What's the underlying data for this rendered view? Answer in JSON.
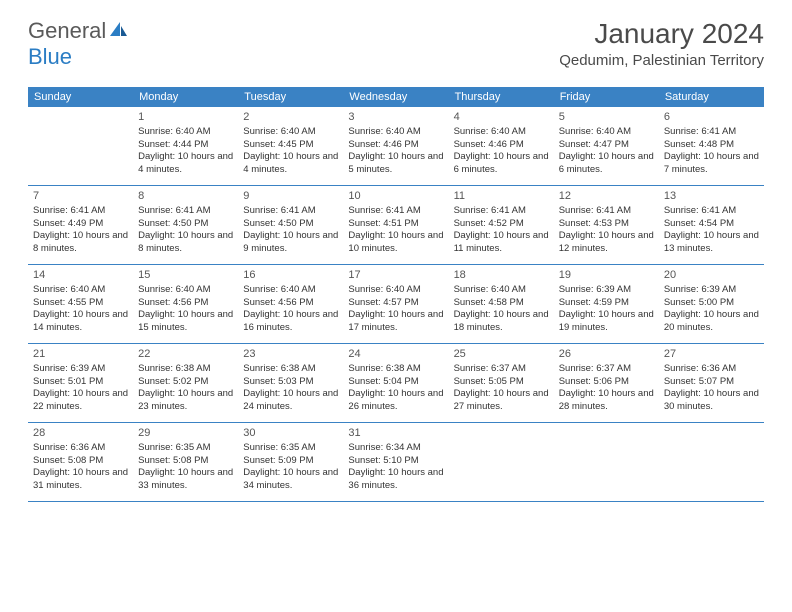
{
  "brand": {
    "part1": "General",
    "part2": "Blue"
  },
  "title": "January 2024",
  "location": "Qedumim, Palestinian Territory",
  "colors": {
    "header_bg": "#3a82c4",
    "header_text": "#ffffff",
    "row_divider": "#3a82c4",
    "body_text": "#333333",
    "title_text": "#4a4a4a",
    "brand_gray": "#5a5a5a",
    "brand_blue": "#2b7dc4",
    "background": "#ffffff"
  },
  "dayNames": [
    "Sunday",
    "Monday",
    "Tuesday",
    "Wednesday",
    "Thursday",
    "Friday",
    "Saturday"
  ],
  "weeks": [
    [
      null,
      {
        "n": "1",
        "sunrise": "6:40 AM",
        "sunset": "4:44 PM",
        "daylight": "10 hours and 4 minutes."
      },
      {
        "n": "2",
        "sunrise": "6:40 AM",
        "sunset": "4:45 PM",
        "daylight": "10 hours and 4 minutes."
      },
      {
        "n": "3",
        "sunrise": "6:40 AM",
        "sunset": "4:46 PM",
        "daylight": "10 hours and 5 minutes."
      },
      {
        "n": "4",
        "sunrise": "6:40 AM",
        "sunset": "4:46 PM",
        "daylight": "10 hours and 6 minutes."
      },
      {
        "n": "5",
        "sunrise": "6:40 AM",
        "sunset": "4:47 PM",
        "daylight": "10 hours and 6 minutes."
      },
      {
        "n": "6",
        "sunrise": "6:41 AM",
        "sunset": "4:48 PM",
        "daylight": "10 hours and 7 minutes."
      }
    ],
    [
      {
        "n": "7",
        "sunrise": "6:41 AM",
        "sunset": "4:49 PM",
        "daylight": "10 hours and 8 minutes."
      },
      {
        "n": "8",
        "sunrise": "6:41 AM",
        "sunset": "4:50 PM",
        "daylight": "10 hours and 8 minutes."
      },
      {
        "n": "9",
        "sunrise": "6:41 AM",
        "sunset": "4:50 PM",
        "daylight": "10 hours and 9 minutes."
      },
      {
        "n": "10",
        "sunrise": "6:41 AM",
        "sunset": "4:51 PM",
        "daylight": "10 hours and 10 minutes."
      },
      {
        "n": "11",
        "sunrise": "6:41 AM",
        "sunset": "4:52 PM",
        "daylight": "10 hours and 11 minutes."
      },
      {
        "n": "12",
        "sunrise": "6:41 AM",
        "sunset": "4:53 PM",
        "daylight": "10 hours and 12 minutes."
      },
      {
        "n": "13",
        "sunrise": "6:41 AM",
        "sunset": "4:54 PM",
        "daylight": "10 hours and 13 minutes."
      }
    ],
    [
      {
        "n": "14",
        "sunrise": "6:40 AM",
        "sunset": "4:55 PM",
        "daylight": "10 hours and 14 minutes."
      },
      {
        "n": "15",
        "sunrise": "6:40 AM",
        "sunset": "4:56 PM",
        "daylight": "10 hours and 15 minutes."
      },
      {
        "n": "16",
        "sunrise": "6:40 AM",
        "sunset": "4:56 PM",
        "daylight": "10 hours and 16 minutes."
      },
      {
        "n": "17",
        "sunrise": "6:40 AM",
        "sunset": "4:57 PM",
        "daylight": "10 hours and 17 minutes."
      },
      {
        "n": "18",
        "sunrise": "6:40 AM",
        "sunset": "4:58 PM",
        "daylight": "10 hours and 18 minutes."
      },
      {
        "n": "19",
        "sunrise": "6:39 AM",
        "sunset": "4:59 PM",
        "daylight": "10 hours and 19 minutes."
      },
      {
        "n": "20",
        "sunrise": "6:39 AM",
        "sunset": "5:00 PM",
        "daylight": "10 hours and 20 minutes."
      }
    ],
    [
      {
        "n": "21",
        "sunrise": "6:39 AM",
        "sunset": "5:01 PM",
        "daylight": "10 hours and 22 minutes."
      },
      {
        "n": "22",
        "sunrise": "6:38 AM",
        "sunset": "5:02 PM",
        "daylight": "10 hours and 23 minutes."
      },
      {
        "n": "23",
        "sunrise": "6:38 AM",
        "sunset": "5:03 PM",
        "daylight": "10 hours and 24 minutes."
      },
      {
        "n": "24",
        "sunrise": "6:38 AM",
        "sunset": "5:04 PM",
        "daylight": "10 hours and 26 minutes."
      },
      {
        "n": "25",
        "sunrise": "6:37 AM",
        "sunset": "5:05 PM",
        "daylight": "10 hours and 27 minutes."
      },
      {
        "n": "26",
        "sunrise": "6:37 AM",
        "sunset": "5:06 PM",
        "daylight": "10 hours and 28 minutes."
      },
      {
        "n": "27",
        "sunrise": "6:36 AM",
        "sunset": "5:07 PM",
        "daylight": "10 hours and 30 minutes."
      }
    ],
    [
      {
        "n": "28",
        "sunrise": "6:36 AM",
        "sunset": "5:08 PM",
        "daylight": "10 hours and 31 minutes."
      },
      {
        "n": "29",
        "sunrise": "6:35 AM",
        "sunset": "5:08 PM",
        "daylight": "10 hours and 33 minutes."
      },
      {
        "n": "30",
        "sunrise": "6:35 AM",
        "sunset": "5:09 PM",
        "daylight": "10 hours and 34 minutes."
      },
      {
        "n": "31",
        "sunrise": "6:34 AM",
        "sunset": "5:10 PM",
        "daylight": "10 hours and 36 minutes."
      },
      null,
      null,
      null
    ]
  ],
  "labels": {
    "sunrise": "Sunrise:",
    "sunset": "Sunset:",
    "daylight": "Daylight:"
  }
}
